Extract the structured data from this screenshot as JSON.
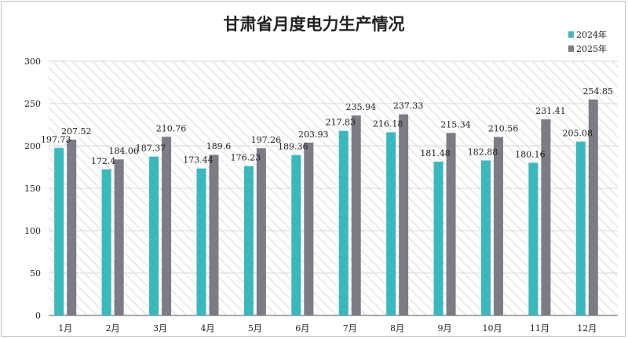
{
  "chart_data": {
    "type": "bar",
    "title": "甘肃省月度电力生产情况",
    "xlabel": "",
    "ylabel": "",
    "ylim": [
      0,
      300
    ],
    "yticks": [
      0,
      50,
      100,
      150,
      200,
      250,
      300
    ],
    "categories": [
      "1月",
      "2月",
      "3月",
      "4月",
      "5月",
      "6月",
      "7月",
      "8月",
      "9月",
      "10月",
      "11月",
      "12月"
    ],
    "series": [
      {
        "name": "2024年",
        "color": "#3ab8bd",
        "values": [
          197.73,
          172.4,
          187.37,
          173.44,
          176.23,
          189.36,
          217.83,
          216.18,
          181.48,
          182.88,
          180.16,
          205.08
        ],
        "labels": [
          "197.73",
          "172.4",
          "187.37",
          "173.44",
          "176.23",
          "189.36",
          "217.83",
          "216.18",
          "181.48",
          "182.88",
          "180.16",
          "205.08"
        ]
      },
      {
        "name": "2025年",
        "color": "#7b7c86",
        "values": [
          207.52,
          184.06,
          210.76,
          189.6,
          197.26,
          203.93,
          235.94,
          237.33,
          215.34,
          210.56,
          231.41,
          254.85
        ],
        "labels": [
          "207.52",
          "184.06",
          "210.76",
          "189.6",
          "197.26",
          "203.93",
          "235.94",
          "237.33",
          "215.34",
          "210.56",
          "231.41",
          "254.85"
        ]
      }
    ],
    "legend": "top-right",
    "grid": true
  }
}
